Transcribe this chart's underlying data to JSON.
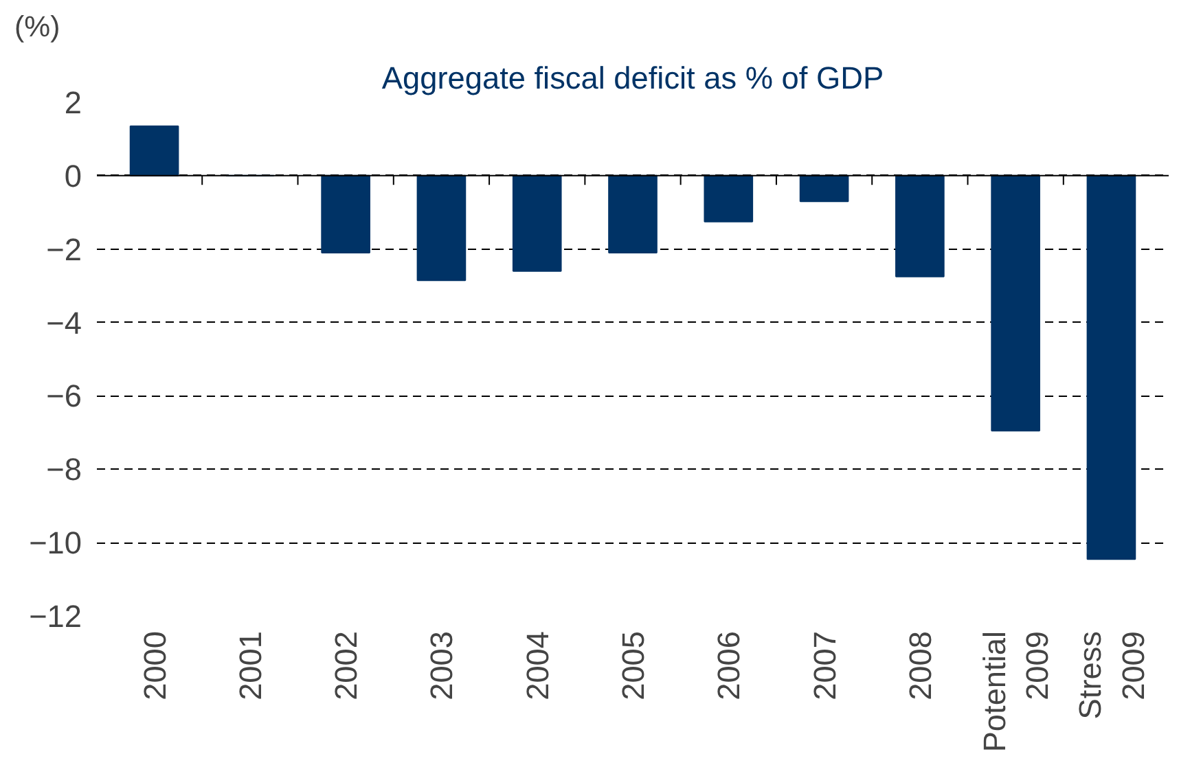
{
  "chart_data": {
    "type": "bar",
    "title": "Aggregate fiscal deficit as % of GDP",
    "ylabel": "(%)",
    "categories": [
      "2000",
      "2001",
      "2002",
      "2003",
      "2004",
      "2005",
      "2006",
      "2007",
      "2008",
      "Potential 2009",
      "Stress 2009"
    ],
    "values": [
      1.35,
      0,
      -2.1,
      -2.85,
      -2.6,
      -2.1,
      -1.25,
      -0.7,
      -2.75,
      -6.95,
      -10.45
    ],
    "color": "#003366",
    "ylim": [
      -12,
      2
    ],
    "yticks": [
      -12,
      -10,
      -8,
      -6,
      -4,
      -2,
      0,
      2
    ],
    "grid": "y"
  }
}
